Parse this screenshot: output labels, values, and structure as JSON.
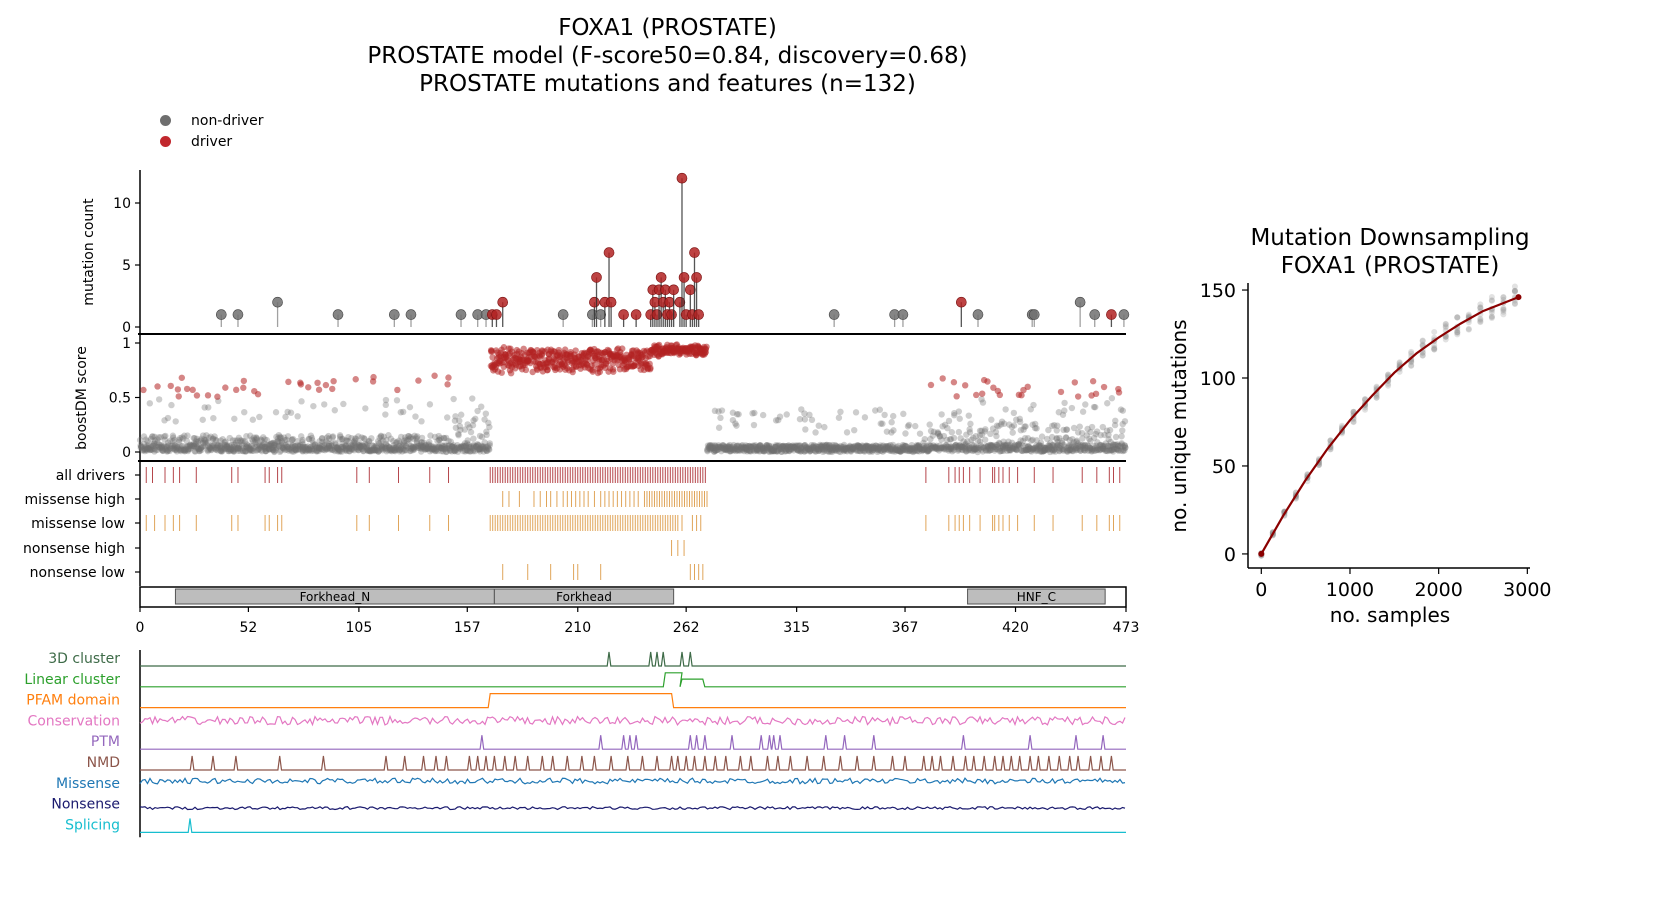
{
  "figure": {
    "title_lines": [
      "FOXA1 (PROSTATE)",
      "PROSTATE model (F-score50=0.84, discovery=0.68)",
      "PROSTATE mutations and features (n=132)"
    ],
    "legend": [
      {
        "label": "non-driver",
        "color": "#6e6e6e"
      },
      {
        "label": "driver",
        "color": "#c1272d"
      }
    ],
    "colors": {
      "driver": "#b22222",
      "nondriver": "#707070",
      "orange_tick": "#e0a55a",
      "driver_tick": "#b5464b"
    }
  },
  "chart_data": [
    {
      "type": "lollipop",
      "ylabel": "mutation count",
      "ylim": [
        0,
        12.5
      ],
      "yticks": [
        0,
        5,
        10
      ],
      "x_range": [
        0,
        473
      ],
      "mutations": [
        {
          "pos": 39,
          "count": 1,
          "driver": false
        },
        {
          "pos": 47,
          "count": 1,
          "driver": false
        },
        {
          "pos": 66,
          "count": 2,
          "driver": false
        },
        {
          "pos": 95,
          "count": 1,
          "driver": false
        },
        {
          "pos": 122,
          "count": 1,
          "driver": false
        },
        {
          "pos": 130,
          "count": 1,
          "driver": false
        },
        {
          "pos": 154,
          "count": 1,
          "driver": false
        },
        {
          "pos": 162,
          "count": 1,
          "driver": false
        },
        {
          "pos": 166,
          "count": 1,
          "driver": false
        },
        {
          "pos": 169,
          "count": 1,
          "driver": true
        },
        {
          "pos": 171,
          "count": 1,
          "driver": true
        },
        {
          "pos": 174,
          "count": 2,
          "driver": true
        },
        {
          "pos": 203,
          "count": 1,
          "driver": false
        },
        {
          "pos": 217,
          "count": 1,
          "driver": false
        },
        {
          "pos": 218,
          "count": 2,
          "driver": true
        },
        {
          "pos": 219,
          "count": 4,
          "driver": true
        },
        {
          "pos": 221,
          "count": 1,
          "driver": false
        },
        {
          "pos": 223,
          "count": 2,
          "driver": true
        },
        {
          "pos": 225,
          "count": 6,
          "driver": true
        },
        {
          "pos": 226,
          "count": 2,
          "driver": true
        },
        {
          "pos": 232,
          "count": 1,
          "driver": true
        },
        {
          "pos": 238,
          "count": 1,
          "driver": true
        },
        {
          "pos": 245,
          "count": 1,
          "driver": true
        },
        {
          "pos": 246,
          "count": 3,
          "driver": true
        },
        {
          "pos": 247,
          "count": 2,
          "driver": true
        },
        {
          "pos": 248,
          "count": 1,
          "driver": true
        },
        {
          "pos": 249,
          "count": 3,
          "driver": true
        },
        {
          "pos": 250,
          "count": 4,
          "driver": true
        },
        {
          "pos": 251,
          "count": 2,
          "driver": true
        },
        {
          "pos": 252,
          "count": 3,
          "driver": true
        },
        {
          "pos": 253,
          "count": 1,
          "driver": true
        },
        {
          "pos": 254,
          "count": 2,
          "driver": true
        },
        {
          "pos": 255,
          "count": 1,
          "driver": true
        },
        {
          "pos": 256,
          "count": 3,
          "driver": true
        },
        {
          "pos": 259,
          "count": 2,
          "driver": true
        },
        {
          "pos": 260,
          "count": 12,
          "driver": true
        },
        {
          "pos": 261,
          "count": 4,
          "driver": true
        },
        {
          "pos": 262,
          "count": 1,
          "driver": true
        },
        {
          "pos": 264,
          "count": 3,
          "driver": true
        },
        {
          "pos": 265,
          "count": 1,
          "driver": true
        },
        {
          "pos": 266,
          "count": 6,
          "driver": true
        },
        {
          "pos": 267,
          "count": 4,
          "driver": true
        },
        {
          "pos": 268,
          "count": 1,
          "driver": true
        },
        {
          "pos": 333,
          "count": 1,
          "driver": false
        },
        {
          "pos": 362,
          "count": 1,
          "driver": false
        },
        {
          "pos": 366,
          "count": 1,
          "driver": false
        },
        {
          "pos": 394,
          "count": 2,
          "driver": true
        },
        {
          "pos": 402,
          "count": 1,
          "driver": false
        },
        {
          "pos": 428,
          "count": 1,
          "driver": false
        },
        {
          "pos": 429,
          "count": 1,
          "driver": false
        },
        {
          "pos": 451,
          "count": 2,
          "driver": false
        },
        {
          "pos": 458,
          "count": 1,
          "driver": false
        },
        {
          "pos": 466,
          "count": 1,
          "driver": true
        },
        {
          "pos": 472,
          "count": 1,
          "driver": false
        }
      ]
    },
    {
      "type": "scatter",
      "ylabel": "boostDM score",
      "ylim": [
        0,
        1
      ],
      "yticks": [
        "0",
        "0.5",
        "1"
      ],
      "threshold": 0.5,
      "score_profile": [
        {
          "start": 0,
          "end": 150,
          "base": 0.12,
          "high": 0.7
        },
        {
          "start": 150,
          "end": 168,
          "base": 0.3,
          "high": 0.5
        },
        {
          "start": 168,
          "end": 245,
          "base": 0.8,
          "high": 0.97
        },
        {
          "start": 245,
          "end": 272,
          "base": 0.95,
          "high": 1.0
        },
        {
          "start": 272,
          "end": 375,
          "base": 0.05,
          "high": 0.4
        },
        {
          "start": 375,
          "end": 473,
          "base": 0.2,
          "high": 0.68
        }
      ]
    },
    {
      "type": "ticks",
      "rows": [
        {
          "label": "all drivers",
          "color": "#b5464b",
          "dense_range": [
            168,
            272
          ],
          "sparse": [
            3,
            6,
            12,
            16,
            19,
            27,
            44,
            47,
            60,
            62,
            66,
            68,
            104,
            110,
            124,
            139,
            148,
            377,
            388,
            391,
            393,
            395,
            398,
            403,
            409,
            410,
            412,
            414,
            417,
            421,
            429,
            438,
            452,
            459,
            465,
            467,
            470
          ]
        },
        {
          "label": "missense high",
          "color": "#e0a55a",
          "dense_range": [
            242,
            272
          ],
          "sparse": [
            174,
            177,
            182,
            189,
            192,
            195,
            197,
            200,
            203,
            205,
            207,
            209,
            211,
            213,
            215,
            218,
            221,
            223,
            225,
            227,
            229,
            231,
            233,
            235,
            237,
            239
          ]
        },
        {
          "label": "missense low",
          "color": "#e0a55a",
          "dense_range": [
            168,
            258
          ],
          "sparse": [
            3,
            7,
            12,
            16,
            19,
            27,
            44,
            47,
            60,
            62,
            66,
            68,
            104,
            110,
            124,
            139,
            148,
            260,
            265,
            267,
            269,
            377,
            388,
            391,
            393,
            395,
            398,
            403,
            409,
            410,
            412,
            414,
            417,
            421,
            429,
            438,
            452,
            459,
            465,
            467,
            470
          ]
        },
        {
          "label": "nonsense high",
          "color": "#e0a55a",
          "dense_range": null,
          "sparse": [
            255,
            258,
            261
          ]
        },
        {
          "label": "nonsense low",
          "color": "#e0a55a",
          "dense_range": null,
          "sparse": [
            174,
            186,
            197,
            208,
            210,
            221,
            264,
            266,
            268,
            270
          ]
        }
      ]
    },
    {
      "type": "domains",
      "x_range": [
        0,
        473
      ],
      "xticks": [
        "0",
        "52",
        "105",
        "157",
        "210",
        "262",
        "315",
        "367",
        "420",
        "473"
      ],
      "xtick_values": [
        0,
        52,
        105,
        157,
        210,
        262,
        315,
        367,
        420,
        473
      ],
      "domains": [
        {
          "name": "Forkhead_N",
          "start": 17,
          "end": 170
        },
        {
          "name": "Forkhead",
          "start": 170,
          "end": 256
        },
        {
          "name": "HNF_C",
          "start": 397,
          "end": 463
        }
      ]
    },
    {
      "type": "feature_tracks",
      "tracks": [
        {
          "label": "3D cluster",
          "color": "#3e6b48",
          "kind": "spikes",
          "positions": [
            225,
            245,
            248,
            251,
            260,
            264
          ]
        },
        {
          "label": "Linear cluster",
          "color": "#2ca02c",
          "kind": "plateau",
          "segments": [
            [
              252,
              260,
              1.0
            ],
            [
              260,
              270,
              0.55
            ]
          ]
        },
        {
          "label": "PFAM domain",
          "color": "#ff7f0e",
          "kind": "plateau",
          "segments": [
            [
              168,
              255,
              1.0
            ]
          ]
        },
        {
          "label": "Conservation",
          "color": "#e377c2",
          "kind": "noise",
          "level": 0.55,
          "amp": 0.3
        },
        {
          "label": "PTM",
          "color": "#9467bd",
          "kind": "spikes",
          "positions": [
            164,
            221,
            232,
            235,
            238,
            264,
            267,
            271,
            284,
            298,
            302,
            304,
            307,
            329,
            338,
            352,
            395,
            427,
            449,
            462
          ]
        },
        {
          "label": "NMD",
          "color": "#8c564b",
          "kind": "spikes",
          "positions": [
            25,
            35,
            46,
            67,
            88,
            118,
            127,
            136,
            142,
            147,
            158,
            162,
            166,
            170,
            175,
            180,
            186,
            193,
            198,
            205,
            212,
            218,
            226,
            234,
            241,
            248,
            255,
            258,
            262,
            266,
            271,
            276,
            281,
            288,
            293,
            301,
            306,
            312,
            320,
            328,
            336,
            344,
            352,
            361,
            367,
            376,
            380,
            384,
            390,
            396,
            400,
            405,
            410,
            414,
            418,
            422,
            427,
            431,
            436,
            441,
            446,
            450,
            456,
            461,
            466
          ]
        },
        {
          "label": "Missense",
          "color": "#1f77b4",
          "kind": "noise",
          "level": 0.7,
          "amp": 0.2
        },
        {
          "label": "Nonsense",
          "color": "#1a1a6e",
          "kind": "noise",
          "level": 0.25,
          "amp": 0.1
        },
        {
          "label": "Splicing",
          "color": "#17becf",
          "kind": "spikes",
          "positions": [
            24
          ]
        }
      ]
    },
    {
      "type": "line",
      "title": "Mutation Downsampling\nFOXA1 (PROSTATE)",
      "xlabel": "no. samples",
      "ylabel": "no. unique mutations",
      "xlim": [
        -150,
        3030
      ],
      "ylim": [
        -8,
        154
      ],
      "xticks": [
        0,
        1000,
        2000,
        3000
      ],
      "yticks": [
        0,
        50,
        100,
        150
      ],
      "series": [
        {
          "kind": "fit",
          "x": [
            0,
            250,
            500,
            750,
            1000,
            1250,
            1500,
            1750,
            2000,
            2250,
            2500,
            2750,
            2900
          ],
          "y": [
            0,
            22,
            42,
            60,
            76,
            90,
            103,
            114,
            123,
            131,
            138,
            143,
            146
          ]
        }
      ],
      "sample_points_x": [
        0,
        130,
        260,
        390,
        520,
        650,
        780,
        910,
        1040,
        1170,
        1300,
        1430,
        1560,
        1690,
        1820,
        1950,
        2080,
        2210,
        2340,
        2470,
        2600,
        2730,
        2860
      ]
    }
  ]
}
